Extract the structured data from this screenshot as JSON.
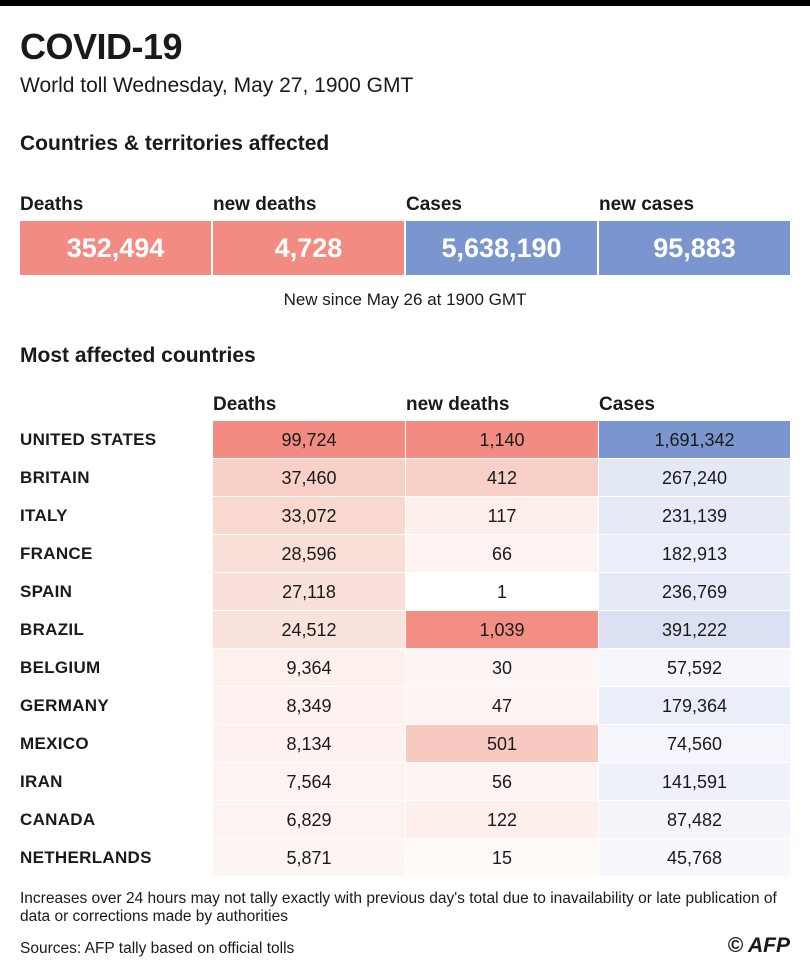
{
  "header": {
    "title": "COVID-19",
    "subtitle": "World toll Wednesday, May 27, 1900 GMT"
  },
  "summary": {
    "heading": "Countries & territories affected",
    "items": [
      {
        "label": "Deaths",
        "value": "352,494",
        "color": "#f28b82"
      },
      {
        "label": "new deaths",
        "value": "4,728",
        "color": "#f28b82"
      },
      {
        "label": "Cases",
        "value": "5,638,190",
        "color": "#7b96cf"
      },
      {
        "label": "new cases",
        "value": "95,883",
        "color": "#7b96cf"
      }
    ],
    "note": "New since  May 26 at 1900 GMT"
  },
  "table": {
    "heading": "Most affected countries",
    "columns": [
      "Deaths",
      "new deaths",
      "Cases"
    ],
    "rows": [
      {
        "country": "UNITED STATES",
        "deaths": "99,724",
        "new_deaths": "1,140",
        "cases": "1,691,342",
        "deaths_color": "#f28b82",
        "new_deaths_color": "#f28b82",
        "cases_color": "#7b96cf"
      },
      {
        "country": "BRITAIN",
        "deaths": "37,460",
        "new_deaths": "412",
        "cases": "267,240",
        "deaths_color": "#f8d0c8",
        "new_deaths_color": "#f8d0c8",
        "cases_color": "#e3e8f5"
      },
      {
        "country": "ITALY",
        "deaths": "33,072",
        "new_deaths": "117",
        "cases": "231,139",
        "deaths_color": "#f9d8d0",
        "new_deaths_color": "#fdefec",
        "cases_color": "#e6eaf6"
      },
      {
        "country": "FRANCE",
        "deaths": "28,596",
        "new_deaths": "66",
        "cases": "182,913",
        "deaths_color": "#fadfd8",
        "new_deaths_color": "#fef3f1",
        "cases_color": "#eaeef8"
      },
      {
        "country": "SPAIN",
        "deaths": "27,118",
        "new_deaths": "1",
        "cases": "236,769",
        "deaths_color": "#fae0da",
        "new_deaths_color": "#ffffff",
        "cases_color": "#e6eaf6"
      },
      {
        "country": "BRAZIL",
        "deaths": "24,512",
        "new_deaths": "1,039",
        "cases": "391,222",
        "deaths_color": "#fae2dc",
        "new_deaths_color": "#f38e85",
        "cases_color": "#dbe1f2"
      },
      {
        "country": "BELGIUM",
        "deaths": "9,364",
        "new_deaths": "30",
        "cases": "57,592",
        "deaths_color": "#fdf1ee",
        "new_deaths_color": "#fef6f4",
        "cases_color": "#f5f7fc"
      },
      {
        "country": "GERMANY",
        "deaths": "8,349",
        "new_deaths": "47",
        "cases": "179,364",
        "deaths_color": "#fdf2ef",
        "new_deaths_color": "#fef5f3",
        "cases_color": "#eaeef8"
      },
      {
        "country": "MEXICO",
        "deaths": "8,134",
        "new_deaths": "501",
        "cases": "74,560",
        "deaths_color": "#fdf2ef",
        "new_deaths_color": "#f8c9c1",
        "cases_color": "#f4f6fb"
      },
      {
        "country": "IRAN",
        "deaths": "7,564",
        "new_deaths": "56",
        "cases": "141,591",
        "deaths_color": "#fdf3f0",
        "new_deaths_color": "#fef4f2",
        "cases_color": "#eef1f9"
      },
      {
        "country": "CANADA",
        "deaths": "6,829",
        "new_deaths": "122",
        "cases": "87,482",
        "deaths_color": "#fdf4f1",
        "new_deaths_color": "#fdefec",
        "cases_color": "#f3f5fb"
      },
      {
        "country": "NETHERLANDS",
        "deaths": "5,871",
        "new_deaths": "15",
        "cases": "45,768",
        "deaths_color": "#fdf5f2",
        "new_deaths_color": "#fff9f8",
        "cases_color": "#f6f8fc"
      }
    ]
  },
  "footer": {
    "footnote": "Increases over 24 hours may not tally exactly with previous day's total due to inavailability or late publication of data or corrections made by authorities",
    "sources": "Sources: AFP tally based on official tolls",
    "logo": "© AFP"
  }
}
